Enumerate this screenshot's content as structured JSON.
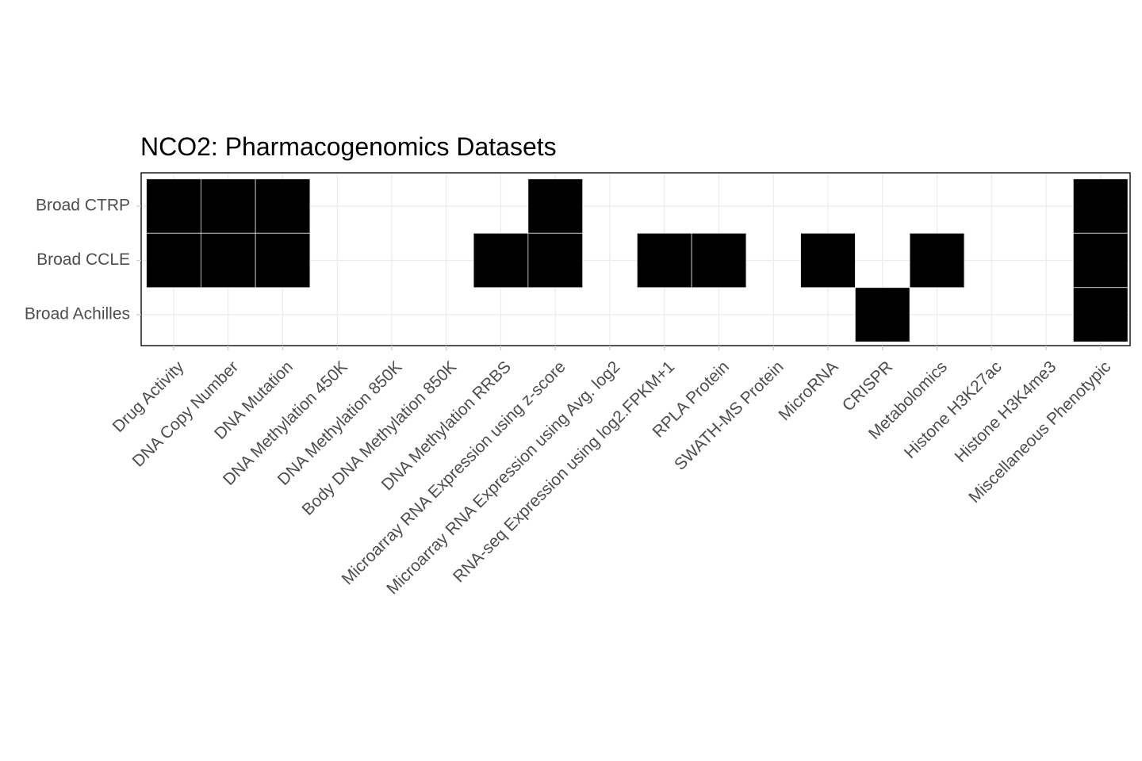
{
  "chart_data": {
    "type": "heatmap",
    "title": "NCO2: Pharmacogenomics Datasets",
    "xlabel": "",
    "ylabel": "",
    "grid": true,
    "legend": "none",
    "fill_color": "#000000",
    "categories": [
      "Drug Activity",
      "DNA Copy Number",
      "DNA Mutation",
      "DNA Methylation 450K",
      "DNA Methylation 850K",
      "Body DNA Methylation 850K",
      "DNA Methylation RRBS",
      "Microarray RNA Expression using z-score",
      "Microarray RNA Expression using Avg. log2",
      "RNA-seq Expression using log2.FPKM+1",
      "RPLA Protein",
      "SWATH-MS Protein",
      "MicroRNA",
      "CRISPR",
      "Metabolomics",
      "Histone H3K27ac",
      "Histone H3K4me3",
      "Miscellaneous Phenotypic"
    ],
    "rows": [
      "Broad CTRP",
      "Broad CCLE",
      "Broad Achilles"
    ],
    "available": [
      [
        1,
        1,
        1,
        0,
        0,
        0,
        0,
        1,
        0,
        0,
        0,
        0,
        0,
        0,
        0,
        0,
        0,
        1
      ],
      [
        1,
        1,
        1,
        0,
        0,
        0,
        1,
        1,
        0,
        1,
        1,
        0,
        1,
        0,
        1,
        0,
        0,
        1
      ],
      [
        0,
        0,
        0,
        0,
        0,
        0,
        0,
        0,
        0,
        0,
        0,
        0,
        0,
        1,
        0,
        0,
        0,
        1
      ]
    ]
  }
}
